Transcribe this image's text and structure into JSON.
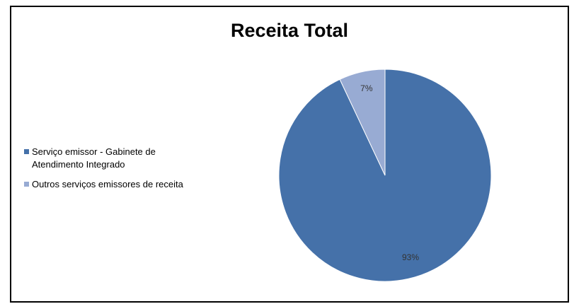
{
  "chart_data": {
    "type": "pie",
    "title": "Receita Total",
    "legend_position": "left",
    "slices": [
      {
        "name": "Serviço emissor - Gabinete de Atendimento Integrado",
        "value": 93,
        "label": "93%",
        "color": "#4571a9"
      },
      {
        "name": "Outros serviços emissores de receita",
        "value": 7,
        "label": "7%",
        "color": "#98abd3"
      }
    ]
  }
}
